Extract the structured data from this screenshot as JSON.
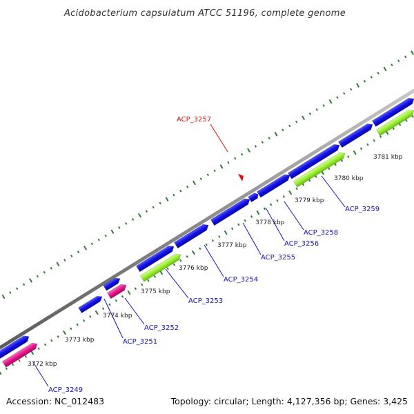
{
  "title": "Acidobacterium capsulatum ATCC 51196, complete genome",
  "footer": {
    "accession": "Accession: NC_012483",
    "summary": "Topology: circular; Length: 4,127,356 bp; Genes: 3,425"
  },
  "colors": {
    "backbone": "#8c8c8c",
    "forward_gene": "#1010e6",
    "reverse_gene": "#9af030",
    "rna_gene": "#e8148c",
    "tick": "#2e7d32",
    "label": "#1010cc",
    "highlight": "#e01010"
  },
  "ticks": [
    {
      "label": "3772 kbp"
    },
    {
      "label": "3773 kbp"
    },
    {
      "label": "3774 kbp"
    },
    {
      "label": "3775 kbp"
    },
    {
      "label": "3776 kbp"
    },
    {
      "label": "3777 kbp"
    },
    {
      "label": "3778 kbp"
    },
    {
      "label": "3779 kbp"
    },
    {
      "label": "3780 kbp"
    },
    {
      "label": "3781 kbp"
    }
  ],
  "gene_labels": [
    {
      "label": "ACP_3249"
    },
    {
      "label": "ACP_3251"
    },
    {
      "label": "ACP_3252"
    },
    {
      "label": "ACP_3253"
    },
    {
      "label": "ACP_3254"
    },
    {
      "label": "ACP_3255"
    },
    {
      "label": "ACP_3256"
    },
    {
      "label": "ACP_3258"
    },
    {
      "label": "ACP_3259"
    },
    {
      "label": "ACP_3257"
    }
  ]
}
